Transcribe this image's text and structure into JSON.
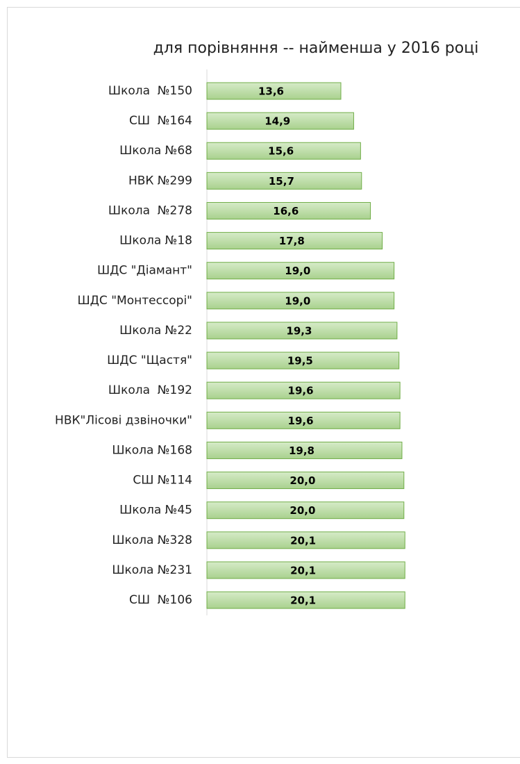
{
  "chart_data": {
    "type": "bar",
    "orientation": "horizontal",
    "title": "для порівняння -- найменша у 2016 році",
    "categories": [
      "Школа  №150",
      "СШ  №164",
      "Школа №68",
      "НВК №299",
      "Школа  №278",
      "Школа №18",
      "ШДС \"Діамант\"",
      "ШДС \"Монтессорі\"",
      "Школа №22",
      "ШДС \"Щастя\"",
      "Школа  №192",
      "НВК\"Лісові дзвіночки\"",
      "Школа №168",
      "СШ №114",
      "Школа №45",
      "Школа №328",
      "Школа №231",
      "СШ  №106"
    ],
    "values": [
      13.6,
      14.9,
      15.6,
      15.7,
      16.6,
      17.8,
      19.0,
      19.0,
      19.3,
      19.5,
      19.6,
      19.6,
      19.8,
      20.0,
      20.0,
      20.1,
      20.1,
      20.1
    ],
    "value_labels": [
      "13,6",
      "14,9",
      "15,6",
      "15,7",
      "16,6",
      "17,8",
      "19,0",
      "19,0",
      "19,3",
      "19,5",
      "19,6",
      "19,6",
      "19,8",
      "20,0",
      "20,0",
      "20,1",
      "20,1",
      "20,1"
    ],
    "color": "#a9d18e"
  }
}
